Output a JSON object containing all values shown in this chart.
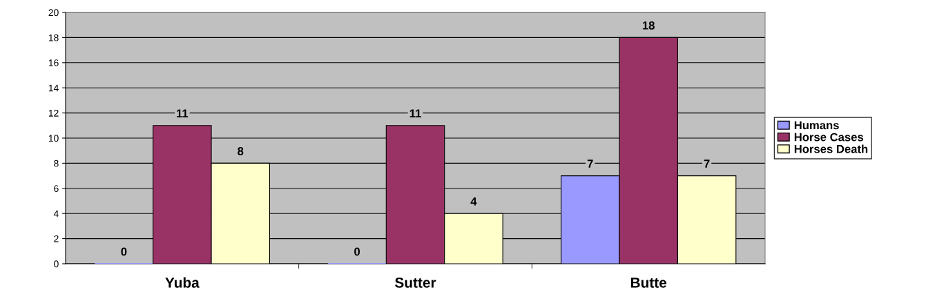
{
  "chart_data": {
    "type": "bar",
    "categories": [
      "Yuba",
      "Sutter",
      "Butte"
    ],
    "series": [
      {
        "name": "Humans",
        "color": "#9999ff",
        "values": [
          0,
          0,
          7
        ]
      },
      {
        "name": "Horse Cases",
        "color": "#993366",
        "values": [
          11,
          11,
          18
        ]
      },
      {
        "name": "Horses Death",
        "color": "#ffffcc",
        "values": [
          8,
          4,
          7
        ]
      }
    ],
    "ylim": [
      0,
      20
    ],
    "yticks": [
      0,
      2,
      4,
      6,
      8,
      10,
      12,
      14,
      16,
      18,
      20
    ],
    "grid": "y",
    "legend": "right",
    "data_labels": true
  }
}
